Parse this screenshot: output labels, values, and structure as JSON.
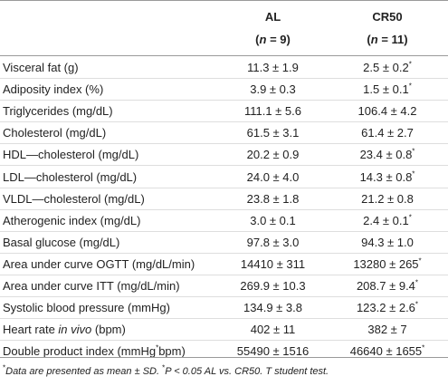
{
  "header": {
    "col_al": "AL",
    "col_cr50": "CR50",
    "n_al": "(n = 9)",
    "n_cr50": "(n = 11)"
  },
  "rows": [
    {
      "label": "Visceral fat (g)",
      "al": "11.3 ± 1.9",
      "cr50": "2.5 ± 0.2",
      "cr50_mark": "*"
    },
    {
      "label": "Adiposity index (%)",
      "al": "3.9 ± 0.3",
      "cr50": "1.5 ± 0.1",
      "cr50_mark": "*"
    },
    {
      "label": "Triglycerides (mg/dL)",
      "al": "111.1 ± 5.6",
      "cr50": "106.4 ± 4.2",
      "cr50_mark": ""
    },
    {
      "label": "Cholesterol (mg/dL)",
      "al": "61.5 ± 3.1",
      "cr50": "61.4 ± 2.7",
      "cr50_mark": ""
    },
    {
      "label": "HDL—cholesterol (mg/dL)",
      "al": "20.2 ± 0.9",
      "cr50": "23.4 ± 0.8",
      "cr50_mark": "*"
    },
    {
      "label": "LDL—cholesterol (mg/dL)",
      "al": "24.0 ± 4.0",
      "cr50": "14.3 ± 0.8",
      "cr50_mark": "*"
    },
    {
      "label": "VLDL—cholesterol (mg/dL)",
      "al": "23.8 ± 1.8",
      "cr50": "21.2 ± 0.8",
      "cr50_mark": ""
    },
    {
      "label": "Atherogenic index (mg/dL)",
      "al": "3.0 ± 0.1",
      "cr50": "2.4 ± 0.1",
      "cr50_mark": "*"
    },
    {
      "label": "Basal glucose (mg/dL)",
      "al": "97.8 ± 3.0",
      "cr50": "94.3 ± 1.0",
      "cr50_mark": ""
    },
    {
      "label": "Area under curve OGTT (mg/dL/min)",
      "al": "14410 ± 311",
      "cr50": "13280 ± 265",
      "cr50_mark": "*"
    },
    {
      "label": "Area under curve ITT (mg/dL/min)",
      "al": "269.9 ± 10.3",
      "cr50": "208.7 ± 9.4",
      "cr50_mark": "*"
    },
    {
      "label": "Systolic blood pressure (mmHg)",
      "al": "134.9 ± 3.8",
      "cr50": "123.2 ± 2.6",
      "cr50_mark": "*"
    },
    {
      "label_html": "Heart rate <i>in vivo</i> (bpm)",
      "label": "Heart rate in vivo (bpm)",
      "al": "402 ± 11",
      "cr50": "382 ± 7",
      "cr50_mark": ""
    },
    {
      "label_html": "Double product index (mmHg<sup>*</sup>bpm)",
      "label": "Double product index (mmHg*bpm)",
      "al": "55490 ± 1516",
      "cr50": "46640 ± 1655",
      "cr50_mark": "*"
    }
  ],
  "footnote": {
    "mark1": "*",
    "text1": "Data are presented as mean ± SD. ",
    "mark2": "*",
    "text2": "P < 0.05 AL vs. CR50. T student test."
  }
}
